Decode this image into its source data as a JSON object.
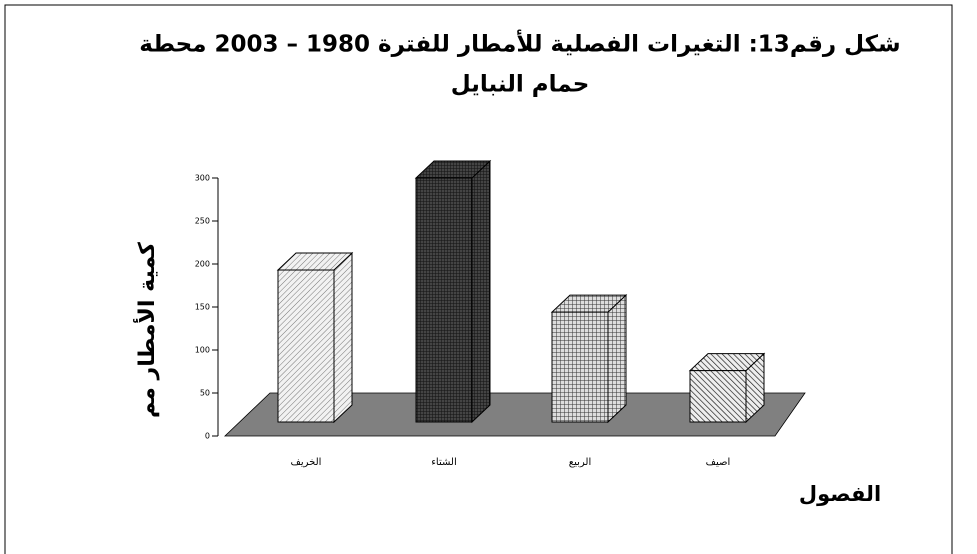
{
  "chart_data": {
    "type": "bar3d",
    "title": [
      "شكل رقم13: التغيرات الفصلية للأمطار للفترة 1980 – 2003 محطة",
      "حمام النبايل"
    ],
    "y_label": "كمية الأمطار مم",
    "x_label": "الفصول",
    "categories": [
      "الخريف",
      "الشتاء",
      "الربيع",
      "اصيف"
    ],
    "values": [
      193,
      300,
      144,
      76
    ],
    "ylim": [
      0,
      300
    ],
    "yticks": [
      0,
      50,
      100,
      150,
      200,
      250,
      300
    ]
  }
}
